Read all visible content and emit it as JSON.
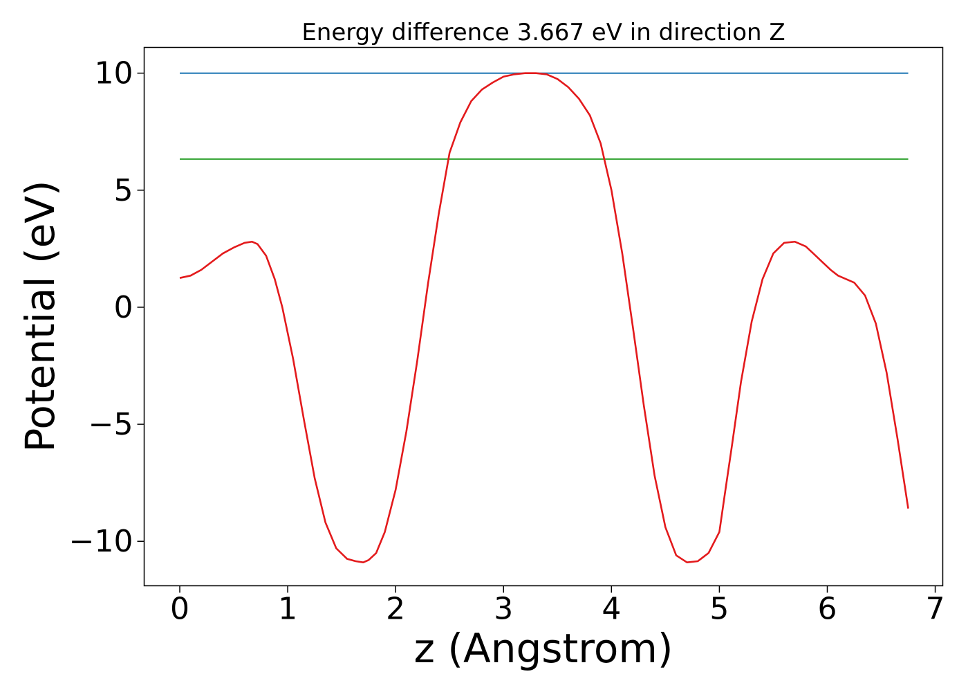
{
  "chart_data": {
    "type": "line",
    "title": "Energy difference 3.667 eV in direction Z",
    "xlabel": "z (Angstrom)",
    "ylabel": "Potential (eV)",
    "xlim": [
      -0.33,
      7.07
    ],
    "ylim": [
      -11.9,
      11.1
    ],
    "x_ticks": [
      0,
      1,
      2,
      3,
      4,
      5,
      6,
      7
    ],
    "x_tick_labels": [
      "0",
      "1",
      "2",
      "3",
      "4",
      "5",
      "6",
      "7"
    ],
    "y_ticks": [
      10,
      5,
      0,
      -5,
      -10
    ],
    "y_tick_labels": [
      "10",
      "5",
      "0",
      "−5",
      "−10"
    ],
    "grid": false,
    "colors": {
      "potential": "#e31a1c",
      "upper_level": "#1f77b4",
      "lower_level": "#2ca02c"
    },
    "series": [
      {
        "key": "upper_level",
        "x": [
          0,
          6.75
        ],
        "y": [
          10.0,
          10.0
        ]
      },
      {
        "key": "lower_level",
        "x": [
          0,
          6.75
        ],
        "y": [
          6.33,
          6.33
        ]
      },
      {
        "key": "potential",
        "x": [
          0.0,
          0.1,
          0.2,
          0.3,
          0.4,
          0.5,
          0.6,
          0.67,
          0.72,
          0.8,
          0.88,
          0.95,
          1.05,
          1.15,
          1.25,
          1.35,
          1.45,
          1.55,
          1.63,
          1.7,
          1.75,
          1.82,
          1.9,
          2.0,
          2.1,
          2.2,
          2.3,
          2.4,
          2.5,
          2.6,
          2.7,
          2.8,
          2.9,
          3.0,
          3.1,
          3.2,
          3.3,
          3.4,
          3.5,
          3.6,
          3.7,
          3.8,
          3.9,
          4.0,
          4.1,
          4.2,
          4.3,
          4.4,
          4.5,
          4.6,
          4.7,
          4.8,
          4.9,
          5.0,
          5.05,
          5.12,
          5.2,
          5.3,
          5.4,
          5.5,
          5.6,
          5.7,
          5.8,
          5.87,
          5.95,
          6.03,
          6.1,
          6.15,
          6.25,
          6.35,
          6.45,
          6.55,
          6.65,
          6.75
        ],
        "y": [
          1.25,
          1.35,
          1.6,
          1.95,
          2.3,
          2.55,
          2.75,
          2.8,
          2.7,
          2.2,
          1.2,
          0.0,
          -2.2,
          -4.8,
          -7.3,
          -9.2,
          -10.3,
          -10.75,
          -10.85,
          -10.9,
          -10.8,
          -10.5,
          -9.6,
          -7.8,
          -5.3,
          -2.3,
          1.0,
          4.0,
          6.6,
          7.9,
          8.8,
          9.3,
          9.6,
          9.85,
          9.95,
          10.0,
          10.0,
          9.95,
          9.75,
          9.4,
          8.9,
          8.2,
          7.0,
          5.0,
          2.3,
          -0.9,
          -4.2,
          -7.2,
          -9.4,
          -10.6,
          -10.9,
          -10.85,
          -10.5,
          -9.6,
          -8.0,
          -5.8,
          -3.2,
          -0.6,
          1.2,
          2.3,
          2.75,
          2.8,
          2.6,
          2.3,
          1.95,
          1.6,
          1.35,
          1.25,
          1.05,
          0.5,
          -0.7,
          -2.8,
          -5.6,
          -8.6
        ]
      }
    ]
  }
}
